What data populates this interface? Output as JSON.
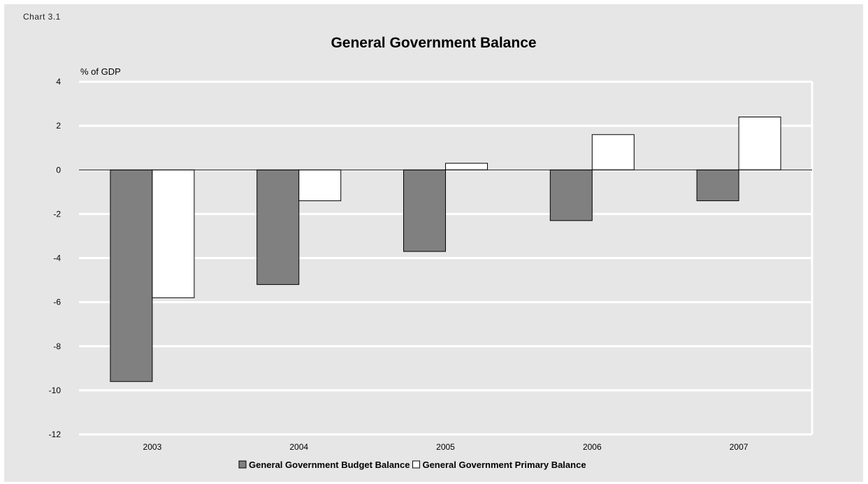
{
  "figure": {
    "label": "Chart 3.1",
    "title": "General Government Balance"
  },
  "chart_data": {
    "type": "bar",
    "title": "General Government Balance",
    "ylabel": "% of GDP",
    "xlabel": "",
    "categories": [
      "2003",
      "2004",
      "2005",
      "2006",
      "2007"
    ],
    "ylim": [
      -12,
      4
    ],
    "yticks": [
      4,
      2,
      0,
      -2,
      -4,
      -6,
      -8,
      -10,
      -12
    ],
    "grid": true,
    "legend_position": "bottom",
    "series": [
      {
        "name": "General Government Budget Balance",
        "values": [
          -9.6,
          -5.2,
          -3.7,
          -2.3,
          -1.4
        ],
        "color": "#808080"
      },
      {
        "name": "General Government Primary Balance",
        "values": [
          -5.8,
          -1.4,
          0.3,
          1.6,
          2.4
        ],
        "color": "#ffffff"
      }
    ]
  }
}
